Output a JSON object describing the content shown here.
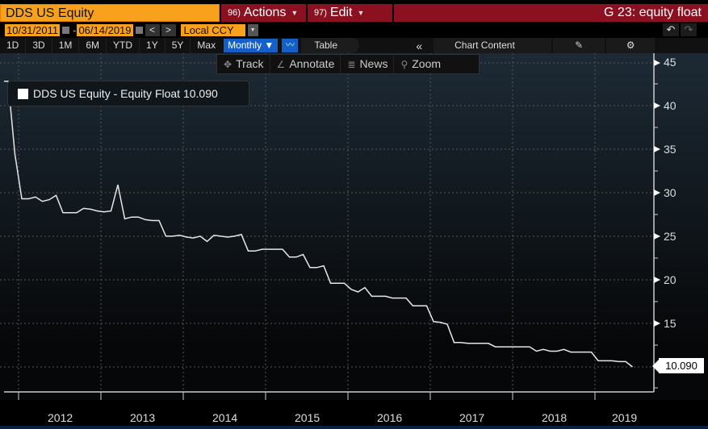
{
  "header": {
    "ticker": "DDS US Equity",
    "actions_num": "96)",
    "actions_label": "Actions",
    "edit_num": "97)",
    "edit_label": "Edit",
    "title": "G 23: equity float"
  },
  "range": {
    "start_date": "10/31/2011",
    "end_date": "06/14/2019",
    "prev_label": "<",
    "next_label": ">",
    "currency": "Local CCY"
  },
  "undo": {
    "undo_icon": "↶",
    "redo_icon": "↷"
  },
  "periods": [
    "1D",
    "3D",
    "1M",
    "6M",
    "YTD",
    "1Y",
    "5Y",
    "Max"
  ],
  "frequency": "Monthly ▼",
  "table_label": "Table",
  "collapse_label": "«",
  "chart_content_label": "Chart Content",
  "edit_icon": "✎",
  "gear_icon": "⚙",
  "tools": {
    "track": "Track",
    "annotate": "Annotate",
    "news": "News",
    "zoom": "Zoom"
  },
  "legend": {
    "text": "DDS US Equity - Equity Float 10.090",
    "color": "#ffffff"
  },
  "last_value_tag": "10.090",
  "colors": {
    "orange": "#f7a11c",
    "red": "#8b1020",
    "blue": "#1560c8",
    "line": "#e6e6e6"
  },
  "chart_data": {
    "type": "line",
    "title": "DDS US Equity - Equity Float",
    "xlabel": "",
    "ylabel": "",
    "ylim": [
      7.5,
      46
    ],
    "yticks": [
      15,
      20,
      25,
      30,
      35,
      40,
      45
    ],
    "xticks": [
      "2012",
      "2013",
      "2014",
      "2015",
      "2016",
      "2017",
      "2018",
      "2019"
    ],
    "grid": true,
    "legend_position": "top-left",
    "series": [
      {
        "name": "DDS US Equity - Equity Float",
        "x": [
          "2011-10",
          "2011-11",
          "2011-12",
          "2012-01",
          "2012-02",
          "2012-03",
          "2012-04",
          "2012-05",
          "2012-06",
          "2012-07",
          "2012-08",
          "2012-09",
          "2012-10",
          "2012-11",
          "2012-12",
          "2013-01",
          "2013-02",
          "2013-03",
          "2013-04",
          "2013-05",
          "2013-06",
          "2013-07",
          "2013-08",
          "2013-09",
          "2013-10",
          "2013-11",
          "2013-12",
          "2014-01",
          "2014-02",
          "2014-03",
          "2014-04",
          "2014-05",
          "2014-06",
          "2014-07",
          "2014-08",
          "2014-09",
          "2014-10",
          "2014-11",
          "2014-12",
          "2015-01",
          "2015-02",
          "2015-03",
          "2015-04",
          "2015-05",
          "2015-06",
          "2015-07",
          "2015-08",
          "2015-09",
          "2015-10",
          "2015-11",
          "2015-12",
          "2016-01",
          "2016-02",
          "2016-03",
          "2016-04",
          "2016-05",
          "2016-06",
          "2016-07",
          "2016-08",
          "2016-09",
          "2016-10",
          "2016-11",
          "2016-12",
          "2017-01",
          "2017-02",
          "2017-03",
          "2017-04",
          "2017-05",
          "2017-06",
          "2017-07",
          "2017-08",
          "2017-09",
          "2017-10",
          "2017-11",
          "2017-12",
          "2018-01",
          "2018-02",
          "2018-03",
          "2018-04",
          "2018-05",
          "2018-06",
          "2018-07",
          "2018-08",
          "2018-09",
          "2018-10",
          "2018-11",
          "2018-12",
          "2019-01",
          "2019-02",
          "2019-03",
          "2019-04",
          "2019-05",
          "2019-06"
        ],
        "values": [
          42.9,
          42.9,
          34.5,
          29.4,
          29.4,
          29.6,
          29.1,
          29.3,
          29.8,
          27.8,
          27.8,
          27.8,
          28.3,
          28.2,
          28.0,
          27.9,
          28.0,
          31.0,
          27.1,
          27.3,
          27.3,
          27.0,
          26.9,
          26.9,
          25.1,
          25.1,
          25.2,
          25.0,
          24.9,
          25.1,
          24.5,
          25.2,
          25.1,
          25.0,
          25.1,
          25.3,
          23.4,
          23.4,
          23.6,
          23.6,
          23.6,
          23.6,
          22.7,
          22.7,
          23.0,
          21.5,
          21.5,
          21.7,
          19.7,
          19.7,
          19.7,
          19.0,
          18.7,
          19.2,
          18.2,
          18.2,
          18.2,
          18.0,
          18.0,
          18.0,
          17.1,
          17.1,
          17.1,
          15.3,
          15.2,
          15.0,
          12.9,
          12.9,
          12.8,
          12.8,
          12.8,
          12.8,
          12.4,
          12.4,
          12.4,
          12.4,
          12.4,
          12.4,
          11.9,
          12.1,
          11.9,
          11.9,
          12.1,
          11.8,
          11.8,
          11.8,
          11.8,
          10.8,
          10.8,
          10.8,
          10.7,
          10.7,
          10.09
        ]
      }
    ]
  }
}
